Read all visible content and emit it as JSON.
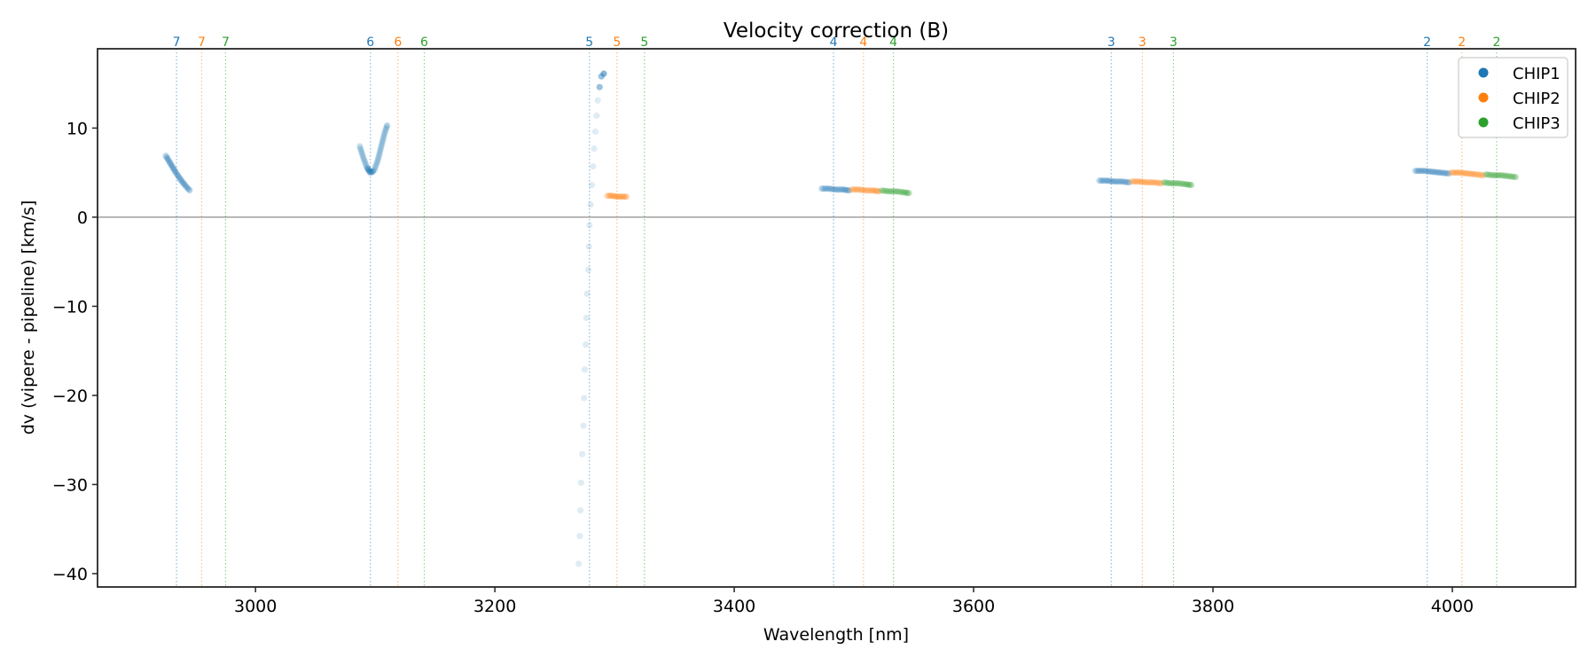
{
  "chart_data": {
    "type": "scatter",
    "title": "Velocity correction (B)",
    "xlabel": "Wavelength [nm]",
    "ylabel": "dv (vipere - pipeline) [km/s]",
    "xlim": [
      2868,
      4103
    ],
    "ylim": [
      -41.5,
      18.9
    ],
    "xticks": [
      3000,
      3200,
      3400,
      3600,
      3800,
      4000
    ],
    "yticks": [
      10,
      0,
      -10,
      -20,
      -30,
      -40
    ],
    "ytick_labels": [
      "10",
      "0",
      "−10",
      "−20",
      "−30",
      "−40"
    ],
    "xtick_labels": [
      "3000",
      "3200",
      "3400",
      "3600",
      "3800",
      "4000"
    ],
    "zero_line": 0,
    "grid": false,
    "legend": {
      "placement": "top-right",
      "entries": [
        "CHIP1",
        "CHIP2",
        "CHIP3"
      ]
    },
    "colors": {
      "CHIP1": "#1f77b4",
      "CHIP2": "#ff7f0e",
      "CHIP3": "#2ca02c",
      "zero_line": "#808080"
    },
    "order_markers": [
      {
        "order": "7",
        "chip": "CHIP1",
        "wavelength": 2934
      },
      {
        "order": "7",
        "chip": "CHIP2",
        "wavelength": 2955
      },
      {
        "order": "7",
        "chip": "CHIP3",
        "wavelength": 2975
      },
      {
        "order": "6",
        "chip": "CHIP1",
        "wavelength": 3096
      },
      {
        "order": "6",
        "chip": "CHIP2",
        "wavelength": 3119
      },
      {
        "order": "6",
        "chip": "CHIP3",
        "wavelength": 3141
      },
      {
        "order": "5",
        "chip": "CHIP1",
        "wavelength": 3279
      },
      {
        "order": "5",
        "chip": "CHIP2",
        "wavelength": 3302
      },
      {
        "order": "5",
        "chip": "CHIP3",
        "wavelength": 3325
      },
      {
        "order": "4",
        "chip": "CHIP1",
        "wavelength": 3483
      },
      {
        "order": "4",
        "chip": "CHIP2",
        "wavelength": 3508
      },
      {
        "order": "4",
        "chip": "CHIP3",
        "wavelength": 3533
      },
      {
        "order": "3",
        "chip": "CHIP1",
        "wavelength": 3715
      },
      {
        "order": "3",
        "chip": "CHIP2",
        "wavelength": 3741
      },
      {
        "order": "3",
        "chip": "CHIP3",
        "wavelength": 3767
      },
      {
        "order": "2",
        "chip": "CHIP1",
        "wavelength": 3979
      },
      {
        "order": "2",
        "chip": "CHIP2",
        "wavelength": 4008
      },
      {
        "order": "2",
        "chip": "CHIP3",
        "wavelength": 4037
      }
    ],
    "series": [
      {
        "name": "CHIP1",
        "order": "7",
        "shape": "curve",
        "points": [
          [
            2925,
            6.9
          ],
          [
            2929,
            6.0
          ],
          [
            2933,
            5.1
          ],
          [
            2937,
            4.3
          ],
          [
            2941,
            3.6
          ],
          [
            2945,
            3.0
          ]
        ]
      },
      {
        "name": "CHIP1",
        "order": "6",
        "shape": "parabola",
        "points": [
          [
            3087,
            8.0
          ],
          [
            3090,
            6.7
          ],
          [
            3093,
            5.6
          ],
          [
            3096,
            5.0
          ],
          [
            3099,
            5.2
          ],
          [
            3102,
            6.3
          ],
          [
            3105,
            7.9
          ],
          [
            3108,
            9.5
          ],
          [
            3110,
            10.3
          ]
        ]
      },
      {
        "name": "CHIP1",
        "order": "5",
        "shape": "steep",
        "points": [
          [
            3270,
            -38.9
          ],
          [
            3271,
            -35.8
          ],
          [
            3271.5,
            -32.9
          ],
          [
            3272,
            -29.8
          ],
          [
            3273,
            -26.6
          ],
          [
            3274,
            -23.4
          ],
          [
            3274.5,
            -20.3
          ],
          [
            3275,
            -17.1
          ],
          [
            3276,
            -14.3
          ],
          [
            3276.5,
            -11.3
          ],
          [
            3277,
            -8.6
          ],
          [
            3278,
            -5.9
          ],
          [
            3278.5,
            -3.3
          ],
          [
            3279,
            -0.9
          ],
          [
            3280,
            1.4
          ],
          [
            3281,
            3.6
          ],
          [
            3282,
            5.7
          ],
          [
            3283,
            7.7
          ],
          [
            3284,
            9.6
          ],
          [
            3285,
            11.4
          ],
          [
            3286,
            13.1
          ],
          [
            3287.5,
            14.6
          ],
          [
            3289,
            15.8
          ],
          [
            3291,
            16.1
          ]
        ]
      },
      {
        "name": "CHIP2",
        "order": "5",
        "shape": "flat",
        "points": [
          [
            3294,
            2.4
          ],
          [
            3298,
            2.4
          ],
          [
            3302,
            2.3
          ],
          [
            3306,
            2.3
          ],
          [
            3310,
            2.3
          ]
        ]
      },
      {
        "name": "CHIP1",
        "order": "4",
        "shape": "flat",
        "points": [
          [
            3473,
            3.2
          ],
          [
            3479,
            3.2
          ],
          [
            3485,
            3.1
          ],
          [
            3491,
            3.1
          ],
          [
            3496,
            3.0
          ]
        ]
      },
      {
        "name": "CHIP2",
        "order": "4",
        "shape": "flat",
        "points": [
          [
            3498,
            3.1
          ],
          [
            3504,
            3.1
          ],
          [
            3510,
            3.0
          ],
          [
            3516,
            3.0
          ],
          [
            3521,
            2.9
          ]
        ]
      },
      {
        "name": "CHIP3",
        "order": "4",
        "shape": "flat",
        "points": [
          [
            3523,
            3.0
          ],
          [
            3529,
            2.9
          ],
          [
            3535,
            2.9
          ],
          [
            3541,
            2.8
          ],
          [
            3546,
            2.7
          ]
        ]
      },
      {
        "name": "CHIP1",
        "order": "3",
        "shape": "flat",
        "points": [
          [
            3705,
            4.1
          ],
          [
            3711,
            4.1
          ],
          [
            3718,
            4.0
          ],
          [
            3724,
            4.0
          ],
          [
            3730,
            3.9
          ]
        ]
      },
      {
        "name": "CHIP2",
        "order": "3",
        "shape": "flat",
        "points": [
          [
            3732,
            4.0
          ],
          [
            3738,
            4.0
          ],
          [
            3745,
            3.9
          ],
          [
            3751,
            3.9
          ],
          [
            3757,
            3.8
          ]
        ]
      },
      {
        "name": "CHIP3",
        "order": "3",
        "shape": "flat",
        "points": [
          [
            3759,
            3.9
          ],
          [
            3765,
            3.8
          ],
          [
            3771,
            3.8
          ],
          [
            3777,
            3.7
          ],
          [
            3782,
            3.6
          ]
        ]
      },
      {
        "name": "CHIP1",
        "order": "2",
        "shape": "flat",
        "points": [
          [
            3969,
            5.2
          ],
          [
            3976,
            5.2
          ],
          [
            3983,
            5.1
          ],
          [
            3990,
            5.0
          ],
          [
            3997,
            4.9
          ]
        ]
      },
      {
        "name": "CHIP2",
        "order": "2",
        "shape": "flat",
        "points": [
          [
            3999,
            5.0
          ],
          [
            4006,
            5.0
          ],
          [
            4013,
            4.9
          ],
          [
            4020,
            4.8
          ],
          [
            4026,
            4.7
          ]
        ]
      },
      {
        "name": "CHIP3",
        "order": "2",
        "shape": "flat",
        "points": [
          [
            4028,
            4.8
          ],
          [
            4034,
            4.7
          ],
          [
            4041,
            4.7
          ],
          [
            4047,
            4.6
          ],
          [
            4053,
            4.5
          ]
        ]
      }
    ]
  }
}
